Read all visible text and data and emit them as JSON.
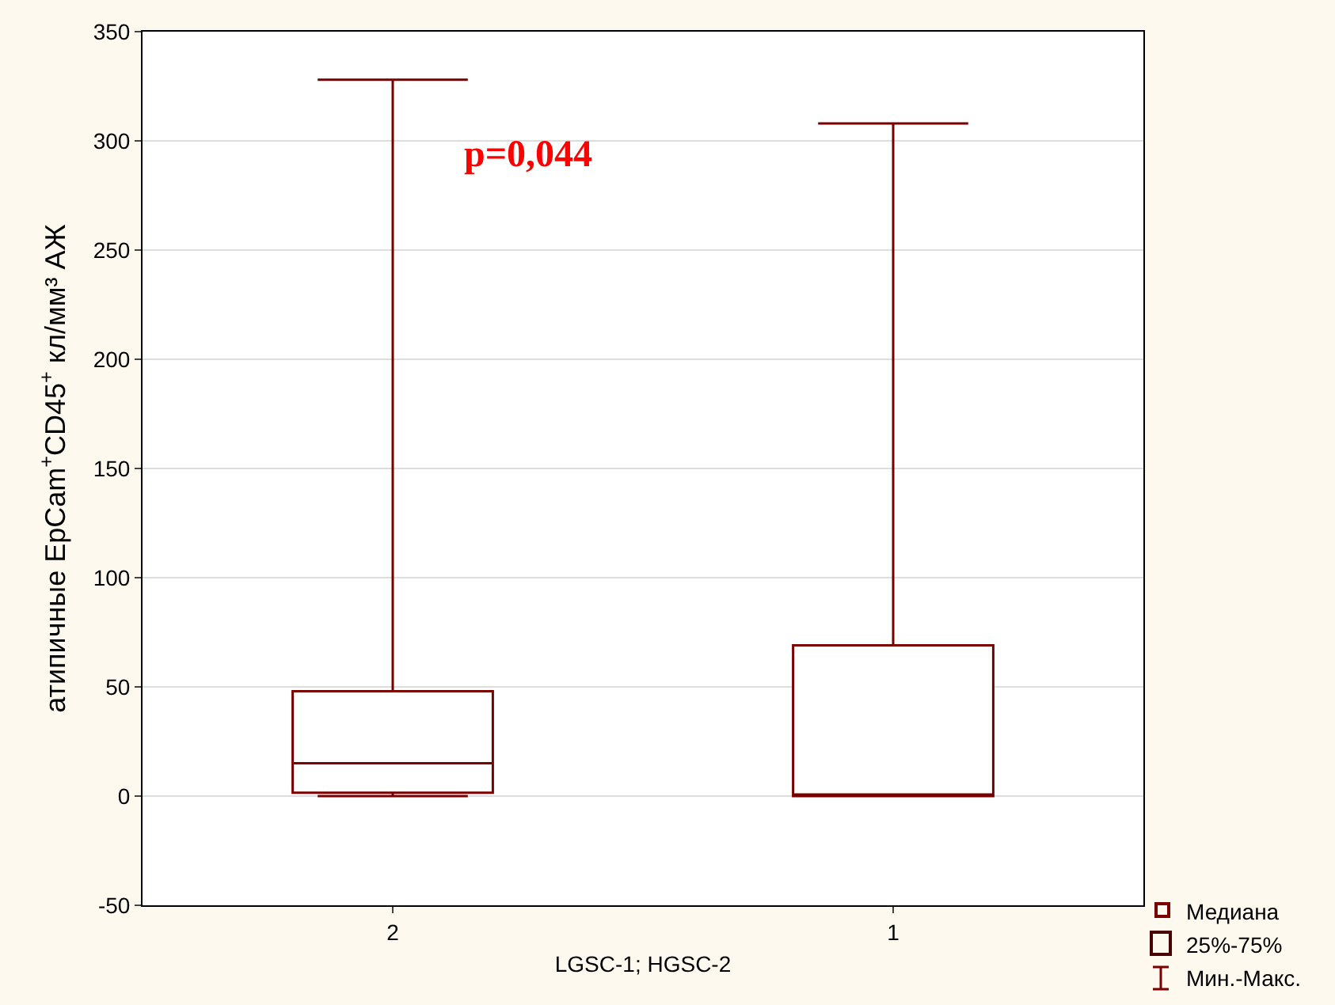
{
  "chart_data": {
    "type": "box",
    "categories": [
      "2",
      "1"
    ],
    "boxes": [
      {
        "low": 0,
        "q1": 1.5,
        "median": 15,
        "q3": 48,
        "high": 328
      },
      {
        "low": 0,
        "q1": 0,
        "median": 0,
        "q3": 69,
        "high": 308
      }
    ],
    "color": "#7a0000",
    "xlabel": "LGSC-1; HGSC-2",
    "ylabel": "атипичные EpCam$^{+}$CD45$^{+}$ кл/мм³ АЖ",
    "ylim": [
      -50,
      350
    ],
    "yticks": [
      -50,
      0,
      50,
      100,
      150,
      200,
      250,
      300,
      350
    ],
    "grid": "y",
    "annotations": [
      "p=0,044",
      "Медиана",
      "25%-75%",
      "Мин.-Макс."
    ]
  }
}
